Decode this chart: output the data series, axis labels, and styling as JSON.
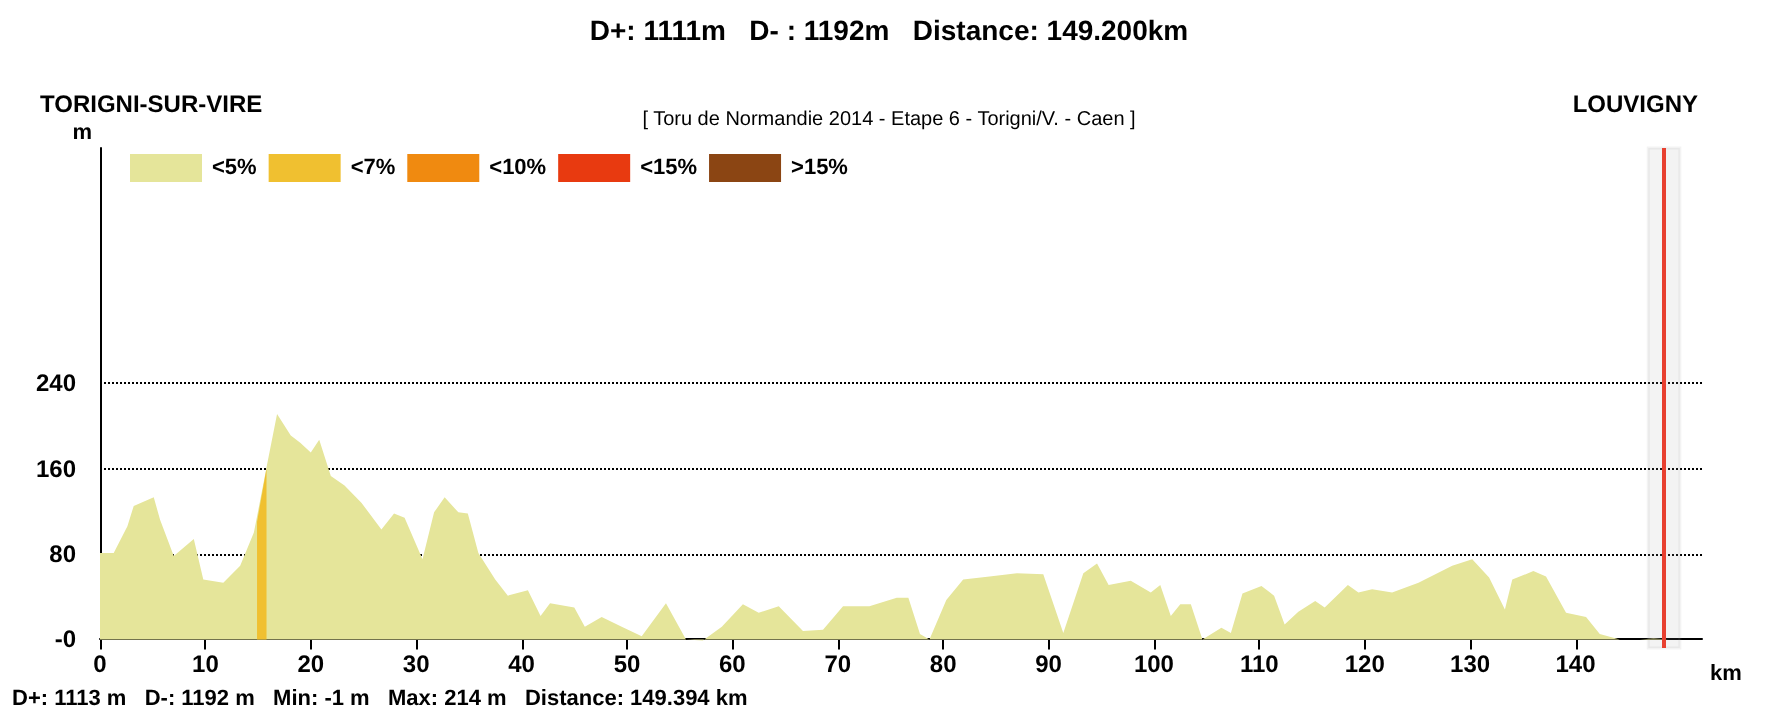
{
  "chart_data": {
    "type": "area",
    "title": "[ Toru de Normandie 2014 - Etape 6 - Torigni/V. - Caen ]",
    "xlabel": "km",
    "ylabel": "m",
    "annotations": [
      "D+: 1111m   D- : 1192m   Distance: 149.200km",
      "TORIGNI-SUR-VIRE",
      "LOUVIGNY",
      "D+: 1113 m   D-: 1192 m   Min: -1 m   Max: 214 m   Distance: 149.394 km"
    ],
    "series": [
      {
        "name": "<5%",
        "color": "#e5e59a",
        "x": [
          0,
          1.3,
          2.6,
          3.2,
          5.1,
          5.7,
          7,
          8.9,
          9.8,
          11.7,
          13.3,
          14.6,
          15.9,
          16.8,
          18.1,
          19,
          20,
          20.8,
          21.9,
          23.2,
          24.8,
          26.7,
          27.9,
          28.9,
          30.6,
          31.7,
          32.7,
          34,
          34.9,
          35.9,
          37.5,
          38.7,
          40.6,
          41.8,
          42.7,
          45,
          46,
          47.6,
          49.5,
          51.4,
          53.7,
          55.6,
          57.2,
          59,
          61,
          62.5,
          64.4,
          66.7,
          68.6,
          70.5,
          73,
          75.6,
          76.7,
          77.8,
          78.7,
          80.3,
          81.9,
          84.4,
          87,
          89.5,
          91.4,
          93.3,
          94.6,
          95.7,
          97.8,
          99.7,
          100.6,
          101.6,
          102.5,
          103.5,
          104.6,
          106.4,
          107.3,
          108.4,
          110.2,
          111.4,
          112.4,
          113.7,
          115.3,
          116.2,
          118.4,
          119.4,
          120.7,
          122.6,
          125.1,
          128.3,
          130.2,
          131.8,
          133.3,
          134,
          136,
          137.2,
          139.1,
          141,
          142.3,
          144.2,
          146.1,
          147.4,
          148.8
        ],
        "values": [
          81,
          81,
          106,
          125,
          133,
          112,
          78,
          94,
          56,
          53,
          69,
          100,
          166,
          211,
          191,
          184,
          175,
          187,
          153,
          144,
          128,
          103,
          118,
          114,
          75,
          119,
          133,
          119,
          118,
          81,
          56,
          41,
          46,
          22,
          34,
          30,
          12,
          21,
          12,
          3,
          34,
          0,
          -1,
          12,
          33,
          25,
          31,
          8,
          9,
          31,
          31,
          39,
          39,
          5,
          0,
          37,
          56,
          59,
          62,
          61,
          6,
          62,
          71,
          51,
          55,
          44,
          51,
          22,
          33,
          33,
          0,
          11,
          6,
          43,
          50,
          41,
          14,
          26,
          36,
          30,
          51,
          44,
          47,
          44,
          53,
          69,
          75,
          58,
          28,
          56,
          64,
          59,
          25,
          21,
          5,
          0,
          0,
          1,
          0
        ]
      },
      {
        "name": "<7%",
        "color": "#f0c030",
        "x": [
          14.9,
          15.8
        ],
        "values": [
          110,
          160
        ]
      },
      {
        "name": "<10%",
        "color": "#f08a10"
      },
      {
        "name": "<15%",
        "color": "#e83a10"
      },
      {
        "name": ">15%",
        "color": "#8b4513"
      }
    ],
    "xlim": [
      0,
      152
    ],
    "xticks": [
      0,
      10,
      20,
      30,
      40,
      50,
      60,
      70,
      80,
      90,
      100,
      110,
      120,
      130,
      140
    ],
    "ylim": [
      -8,
      460
    ],
    "yticks": [
      {
        "value": 0,
        "label": "-0"
      },
      80,
      160,
      240
    ],
    "grid": "y",
    "legend": "top left",
    "ref_lines": [
      {
        "axis": "x",
        "value": 148.4,
        "color": "#e84030"
      }
    ],
    "bands": [
      {
        "axis": "x",
        "from": 146.9,
        "to": 149.9,
        "color": "#999999"
      }
    ]
  }
}
